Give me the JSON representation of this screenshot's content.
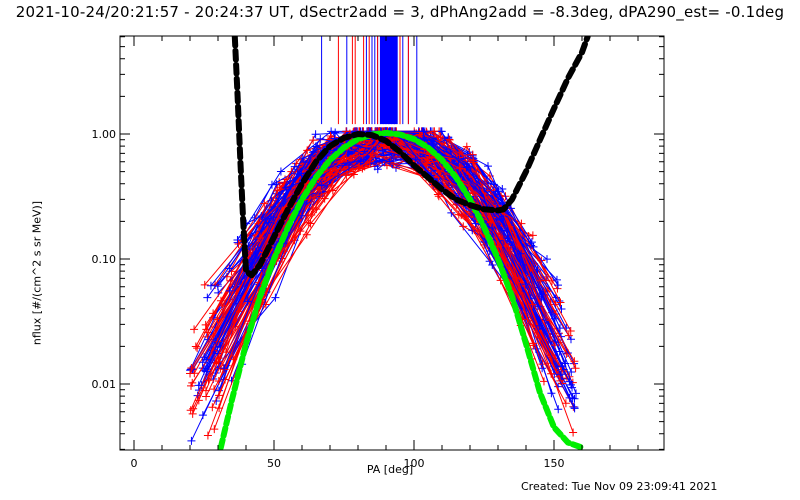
{
  "chart_data": {
    "type": "line",
    "title": "2021-10-24/20:21:57 - 20:24:37 UT, dSectr2add = 3, dPhAng2add = -8.3deg, dPA290_est= -0.1deg",
    "xlabel": "PA [deg]",
    "ylabel": "nflux [#/(cm^2 s sr MeV)]",
    "footer": "Created: Tue Nov 09 23:09:41 2021",
    "xlim": [
      -5,
      189
    ],
    "ylim": [
      0.003,
      6.0
    ],
    "yscale": "log",
    "grid": false,
    "x_ticks": [
      {
        "value": 0,
        "label": "0"
      },
      {
        "value": 50,
        "label": "50"
      },
      {
        "value": 100,
        "label": "100"
      },
      {
        "value": 150,
        "label": "150"
      }
    ],
    "y_ticks": [
      {
        "value": 1.0,
        "label": "1.00"
      },
      {
        "value": 0.1,
        "label": "0.10"
      },
      {
        "value": 0.01,
        "label": "0.01"
      }
    ],
    "series": [
      {
        "name": "model-fit-green",
        "color": "#00ee00",
        "style": "thick-dotted",
        "x": [
          31,
          35,
          40,
          45,
          50,
          55,
          60,
          65,
          70,
          75,
          80,
          85,
          90,
          95,
          100,
          105,
          110,
          115,
          120,
          125,
          130,
          135,
          140,
          145,
          150,
          155,
          160
        ],
        "y": [
          0.0031,
          0.0075,
          0.021,
          0.05,
          0.1,
          0.18,
          0.3,
          0.45,
          0.62,
          0.78,
          0.91,
          0.99,
          1.02,
          0.99,
          0.91,
          0.78,
          0.62,
          0.45,
          0.3,
          0.18,
          0.1,
          0.05,
          0.021,
          0.0085,
          0.0045,
          0.0034,
          0.0031
        ]
      },
      {
        "name": "model-fit-black",
        "color": "#000000",
        "style": "thick-dashed",
        "x": [
          36,
          37,
          38,
          39,
          40,
          42,
          45,
          50,
          55,
          60,
          65,
          70,
          75,
          80,
          85,
          90,
          95,
          100,
          105,
          110,
          115,
          120,
          125,
          130,
          132,
          135,
          140,
          145,
          150,
          155,
          160,
          162
        ],
        "y": [
          6.0,
          2.0,
          0.6,
          0.2,
          0.08,
          0.074,
          0.09,
          0.15,
          0.25,
          0.4,
          0.6,
          0.8,
          0.93,
          1.0,
          0.98,
          0.88,
          0.72,
          0.56,
          0.45,
          0.36,
          0.3,
          0.27,
          0.25,
          0.245,
          0.25,
          0.3,
          0.5,
          0.9,
          1.6,
          2.8,
          4.5,
          6.0
        ]
      }
    ],
    "vertical_markers": {
      "blue": [
        67,
        76,
        83,
        85,
        86,
        87,
        88,
        89,
        90,
        91,
        92,
        93,
        94,
        95,
        96,
        98,
        101
      ],
      "red": [
        73,
        78,
        79,
        82,
        84,
        87,
        91,
        93,
        95,
        98
      ],
      "y_from": 1.2
    },
    "scatter_series": [
      {
        "name": "red-profiles",
        "color": "#ff0000"
      },
      {
        "name": "blue-profiles",
        "color": "#0000ff"
      }
    ]
  }
}
